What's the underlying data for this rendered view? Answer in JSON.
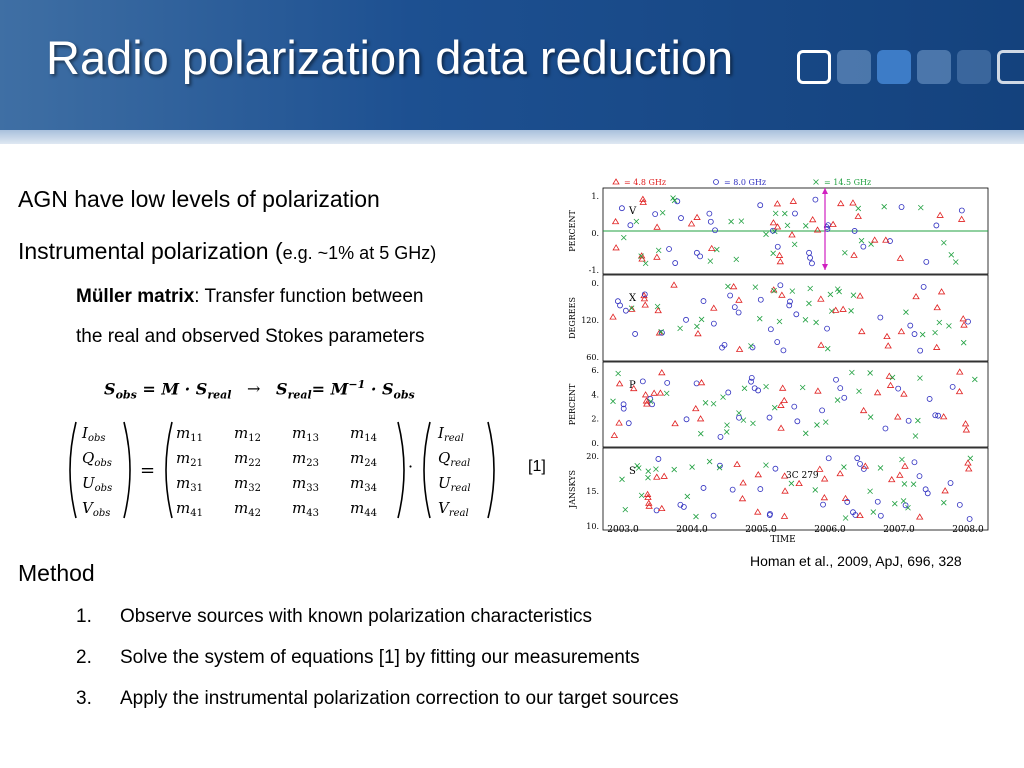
{
  "title": "Radio polarization data reduction",
  "bullets": {
    "b1": "AGN have low levels of polarization",
    "b2_main": "Instrumental polarization (",
    "b2_eg": "e.g. ~1% at 5 GHz)",
    "mueller_bold": "Müller matrix",
    "mueller_rest": ": Transfer function between",
    "mueller_line2": "the real and observed Stokes parameters"
  },
  "equation1": {
    "lhs": "S",
    "lhs_sub": "obs",
    "eq": "= M · S",
    "real_sub": "real",
    "arrow": "→",
    "rhs_S": "S",
    "rhs_eq": "= M",
    "inv": "−1",
    "dot": "· S",
    "obs_sub": "obs"
  },
  "matrix": {
    "obs_vec": [
      "I_obs",
      "Q_obs",
      "U_obs",
      "V_obs"
    ],
    "mueller_rows": [
      [
        "m11",
        "m12",
        "m13",
        "m14"
      ],
      [
        "m21",
        "m22",
        "m23",
        "m24"
      ],
      [
        "m31",
        "m32",
        "m33",
        "m34"
      ],
      [
        "m41",
        "m42",
        "m43",
        "m44"
      ]
    ],
    "real_vec": [
      "I_real",
      "Q_real",
      "U_real",
      "V_real"
    ],
    "equals": "=",
    "dot": "·",
    "label": "[1]"
  },
  "method": {
    "heading": "Method",
    "steps": [
      {
        "num": "1.",
        "text": "Observe sources with known polarization characteristics"
      },
      {
        "num": "2.",
        "text": "Solve the system of equations [1] by fitting our measurements"
      },
      {
        "num": "3.",
        "text": "Apply the instrumental polarization correction to our target sources"
      }
    ]
  },
  "figure": {
    "legend": [
      "= 4.8 GHz",
      "= 8.0 GHz",
      "= 14.5 GHz"
    ],
    "legend_colors": [
      "#e02020",
      "#3030c0",
      "#20a040"
    ],
    "panels": [
      {
        "ylabel": "PERCENT",
        "tag": "V",
        "ticks": [
          "1.",
          "0.",
          "-1."
        ]
      },
      {
        "ylabel": "DEGREES",
        "tag": "X",
        "ticks": [
          "0.",
          "120.",
          "60."
        ]
      },
      {
        "ylabel": "PERCENT",
        "tag": "P",
        "ticks": [
          "6.",
          "4.",
          "2.",
          "0."
        ]
      },
      {
        "ylabel": "JANSKYS",
        "tag": "S",
        "ticks": [
          "20.",
          "15.",
          "10."
        ]
      }
    ],
    "source_label": "3C 279",
    "xticks": [
      "2003.0",
      "2004.0",
      "2005.0",
      "2006.0",
      "2007.0",
      "2008.0"
    ],
    "xlabel": "TIME",
    "reference": "Homan et al., 2009, ApJ, 696, 328"
  }
}
